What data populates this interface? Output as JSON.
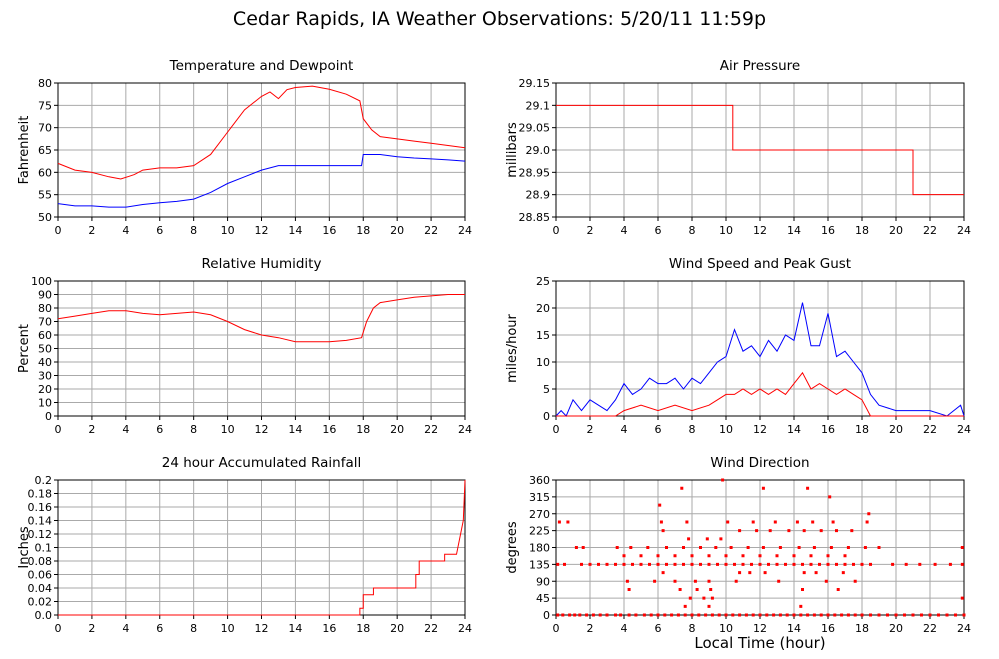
{
  "title": "Cedar Rapids, IA Weather Observations: 5/20/11 11:59p",
  "xlabel": "Local Time (hour)",
  "colors": {
    "red": "#ff0000",
    "blue": "#0000ff",
    "grid": "#aaaaaa"
  },
  "chart_data": [
    {
      "id": "temperature",
      "type": "line",
      "title": "Temperature and Dewpoint",
      "ylabel": "Fahrenheit",
      "xlim": [
        0,
        24
      ],
      "ylim": [
        50,
        80
      ],
      "xticks": [
        0,
        2,
        4,
        6,
        8,
        10,
        12,
        14,
        16,
        18,
        20,
        22,
        24
      ],
      "yticks": [
        50,
        55,
        60,
        65,
        70,
        75,
        80
      ],
      "ytick_labels": [
        "50",
        "55",
        "60",
        "65",
        "70",
        "75",
        "80"
      ],
      "grid": true,
      "series": [
        {
          "color": "#ff0000",
          "x": [
            0,
            1,
            2,
            3,
            3.7,
            4.5,
            5,
            6,
            7,
            8,
            9,
            10,
            11,
            12,
            12.5,
            13,
            13.5,
            14,
            15,
            16,
            17,
            17.8,
            18,
            18.5,
            19,
            20,
            21,
            22,
            23,
            24
          ],
          "y": [
            62,
            60.5,
            60,
            59,
            58.5,
            59.5,
            60.5,
            61,
            61,
            61.5,
            64,
            69,
            74,
            77,
            78,
            76.5,
            78.5,
            79,
            79.3,
            78.6,
            77.5,
            76,
            72,
            69.5,
            68,
            67.5,
            67,
            66.5,
            66,
            65.5
          ]
        },
        {
          "color": "#0000ff",
          "x": [
            0,
            1,
            2,
            3,
            4,
            5,
            6,
            7,
            8,
            9,
            10,
            11,
            12,
            13,
            14,
            15,
            16,
            17,
            17.9,
            18,
            19,
            20,
            21,
            22,
            23,
            24
          ],
          "y": [
            53,
            52.5,
            52.5,
            52.2,
            52.2,
            52.8,
            53.2,
            53.5,
            54,
            55.5,
            57.5,
            59,
            60.5,
            61.5,
            61.5,
            61.5,
            61.5,
            61.5,
            61.5,
            64,
            64,
            63.5,
            63.2,
            63,
            62.8,
            62.5
          ]
        }
      ]
    },
    {
      "id": "pressure",
      "type": "line",
      "title": "Air Pressure",
      "ylabel": "millibars",
      "xlim": [
        0,
        24
      ],
      "ylim": [
        28.85,
        29.15
      ],
      "xticks": [
        0,
        2,
        4,
        6,
        8,
        10,
        12,
        14,
        16,
        18,
        20,
        22,
        24
      ],
      "yticks": [
        28.85,
        28.9,
        28.95,
        29.0,
        29.05,
        29.1,
        29.15
      ],
      "ytick_labels": [
        "28.85",
        "28.9",
        "28.95",
        "29.0",
        "29.05",
        "29.1",
        "29.15"
      ],
      "grid": true,
      "series": [
        {
          "color": "#ff0000",
          "step": true,
          "x": [
            0,
            10.4,
            10.4,
            21,
            21,
            24
          ],
          "y": [
            29.1,
            29.1,
            29.0,
            29.0,
            28.9,
            28.9
          ]
        }
      ]
    },
    {
      "id": "humidity",
      "type": "line",
      "title": "Relative Humidity",
      "ylabel": "Percent",
      "xlim": [
        0,
        24
      ],
      "ylim": [
        0,
        100
      ],
      "xticks": [
        0,
        2,
        4,
        6,
        8,
        10,
        12,
        14,
        16,
        18,
        20,
        22,
        24
      ],
      "yticks": [
        0,
        10,
        20,
        30,
        40,
        50,
        60,
        70,
        80,
        90,
        100
      ],
      "ytick_labels": [
        "0",
        "10",
        "20",
        "30",
        "40",
        "50",
        "60",
        "70",
        "80",
        "90",
        "100"
      ],
      "grid": true,
      "series": [
        {
          "color": "#ff0000",
          "x": [
            0,
            1,
            2,
            3,
            4,
            5,
            6,
            7,
            8,
            9,
            10,
            11,
            12,
            13,
            14,
            15,
            16,
            17,
            17.9,
            18.2,
            18.6,
            19,
            20,
            21,
            22,
            23,
            24
          ],
          "y": [
            72,
            74,
            76,
            78,
            78,
            76,
            75,
            76,
            77,
            75,
            70,
            64,
            60,
            58,
            55,
            55,
            55,
            56,
            58,
            70,
            80,
            84,
            86,
            88,
            89,
            90,
            90
          ]
        }
      ]
    },
    {
      "id": "wind-speed",
      "type": "line",
      "title": "Wind Speed and Peak Gust",
      "ylabel": "miles/hour",
      "xlim": [
        0,
        24
      ],
      "ylim": [
        0,
        25
      ],
      "xticks": [
        0,
        2,
        4,
        6,
        8,
        10,
        12,
        14,
        16,
        18,
        20,
        22,
        24
      ],
      "yticks": [
        0,
        5,
        10,
        15,
        20,
        25
      ],
      "ytick_labels": [
        "0",
        "5",
        "10",
        "15",
        "20",
        "25"
      ],
      "grid": true,
      "series": [
        {
          "color": "#0000ff",
          "x": [
            0,
            0.3,
            0.6,
            1,
            1.5,
            2,
            2.5,
            3,
            3.5,
            4,
            4.5,
            5,
            5.5,
            6,
            6.5,
            7,
            7.5,
            8,
            8.5,
            9,
            9.5,
            10,
            10.5,
            11,
            11.5,
            12,
            12.5,
            13,
            13.5,
            14,
            14.5,
            15,
            15.5,
            16,
            16.5,
            17,
            17.5,
            18,
            18.5,
            19,
            20,
            21,
            22,
            23,
            23.8,
            24
          ],
          "y": [
            0,
            1,
            0,
            3,
            1,
            3,
            2,
            1,
            3,
            6,
            4,
            5,
            7,
            6,
            6,
            7,
            5,
            7,
            6,
            8,
            10,
            11,
            16,
            12,
            13,
            11,
            14,
            12,
            15,
            14,
            21,
            13,
            13,
            19,
            11,
            12,
            10,
            8,
            4,
            2,
            1,
            1,
            1,
            0,
            2,
            0
          ]
        },
        {
          "color": "#ff0000",
          "x": [
            0,
            3.5,
            4,
            5,
            6,
            7,
            8,
            9,
            9.5,
            10,
            10.5,
            11,
            11.5,
            12,
            12.5,
            13,
            13.5,
            14,
            14.5,
            15,
            15.5,
            16,
            16.5,
            17,
            17.5,
            18,
            18.5,
            24
          ],
          "y": [
            0,
            0,
            1,
            2,
            1,
            2,
            1,
            2,
            3,
            4,
            4,
            5,
            4,
            5,
            4,
            5,
            4,
            6,
            8,
            5,
            6,
            5,
            4,
            5,
            4,
            3,
            0,
            0
          ]
        }
      ]
    },
    {
      "id": "rainfall",
      "type": "line",
      "title": "24 hour Accumulated Rainfall",
      "ylabel": "Inches",
      "xlim": [
        0,
        24
      ],
      "ylim": [
        0,
        0.2
      ],
      "xticks": [
        0,
        2,
        4,
        6,
        8,
        10,
        12,
        14,
        16,
        18,
        20,
        22,
        24
      ],
      "yticks": [
        0,
        0.02,
        0.04,
        0.06,
        0.08,
        0.1,
        0.12,
        0.14,
        0.16,
        0.18,
        0.2
      ],
      "ytick_labels": [
        "0.0",
        "0.02",
        "0.04",
        "0.06",
        "0.08",
        "0.1",
        "0.12",
        "0.14",
        "0.16",
        "0.18",
        "0.2"
      ],
      "grid": true,
      "series": [
        {
          "color": "#ff0000",
          "step": true,
          "x": [
            0,
            17.8,
            17.8,
            18.0,
            18.0,
            18.6,
            18.6,
            18.9,
            18.9,
            21.1,
            21.1,
            21.3,
            21.3,
            22.8,
            22.8,
            23.5,
            23.5,
            23.9,
            24
          ],
          "y": [
            0,
            0,
            0.01,
            0.01,
            0.03,
            0.03,
            0.04,
            0.04,
            0.04,
            0.04,
            0.06,
            0.06,
            0.08,
            0.08,
            0.09,
            0.09,
            0.09,
            0.14,
            0.2
          ]
        }
      ]
    },
    {
      "id": "wind-direction",
      "type": "scatter",
      "title": "Wind Direction",
      "ylabel": "degrees",
      "xlim": [
        0,
        24
      ],
      "ylim": [
        0,
        360
      ],
      "xticks": [
        0,
        2,
        4,
        6,
        8,
        10,
        12,
        14,
        16,
        18,
        20,
        22,
        24
      ],
      "yticks": [
        0,
        45,
        90,
        135,
        180,
        225,
        270,
        315,
        360
      ],
      "ytick_labels": [
        "0",
        "45",
        "90",
        "135",
        "180",
        "225",
        "270",
        "315",
        "360"
      ],
      "grid": true,
      "series": [
        {
          "color": "#ff0000",
          "x": [
            0.1,
            0.4,
            0.8,
            1.1,
            1.4,
            1.8,
            2.2,
            2.6,
            3.0,
            3.5,
            3.8,
            4.3,
            4.7,
            5.2,
            5.6,
            6.0,
            6.4,
            6.8,
            7.2,
            7.6,
            8.0,
            8.4,
            8.8,
            9.2,
            9.6,
            10.0,
            10.4,
            10.8,
            11.2,
            11.6,
            12.0,
            12.4,
            12.8,
            13.2,
            13.6,
            14.0,
            14.4,
            14.8,
            15.2,
            15.6,
            16.0,
            16.4,
            16.8,
            17.2,
            17.6,
            18.0,
            18.5,
            19.0,
            19.5,
            20.0,
            20.5,
            21.0,
            21.5,
            22.0,
            22.5,
            23.0,
            23.5,
            24.0,
            0.1,
            0.5,
            1.5,
            2.0,
            2.5,
            3.0,
            3.5,
            4.0,
            4.5,
            5.0,
            5.5,
            6.0,
            6.5,
            7.0,
            7.5,
            8.0,
            8.5,
            9.0,
            9.5,
            10.0,
            10.5,
            11.0,
            11.5,
            12.0,
            12.5,
            13.0,
            13.5,
            14.0,
            14.5,
            15.0,
            15.5,
            16.0,
            16.5,
            17.0,
            17.5,
            18.0,
            18.5,
            19.8,
            20.6,
            21.4,
            22.3,
            23.2,
            23.9,
            4.0,
            5.0,
            6.0,
            7.0,
            8.0,
            9.0,
            10.0,
            11.0,
            12.0,
            13.0,
            14.0,
            15.0,
            16.0,
            17.0,
            1.2,
            1.6,
            3.6,
            4.4,
            5.4,
            6.5,
            7.5,
            8.5,
            9.4,
            10.3,
            11.3,
            12.2,
            13.2,
            14.3,
            15.2,
            16.2,
            17.2,
            18.2,
            19.0,
            23.9,
            0.2,
            0.7,
            6.3,
            7.8,
            8.9,
            9.7,
            10.8,
            11.8,
            12.6,
            13.7,
            14.6,
            15.6,
            16.5,
            17.4,
            18.3,
            6.2,
            7.7,
            10.1,
            11.6,
            12.9,
            14.2,
            15.1,
            16.3,
            18.4,
            6.1,
            7.4,
            9.8,
            12.2,
            14.8,
            16.1,
            4.2,
            5.8,
            7.0,
            8.2,
            9.0,
            10.6,
            13.1,
            15.9,
            17.6,
            23.9,
            4.3,
            7.3,
            8.3,
            9.1,
            14.5,
            16.6,
            7.9,
            8.7,
            14.4,
            7.6,
            9.0,
            9.2,
            12.3,
            14.6,
            15.3,
            6.3,
            16.9,
            11.4,
            10.8
          ],
          "y": [
            0,
            0,
            0,
            0,
            0,
            0,
            0,
            0,
            0,
            0,
            0,
            0,
            0,
            0,
            0,
            0,
            0,
            0,
            0,
            0,
            0,
            0,
            0,
            0,
            0,
            0,
            0,
            0,
            0,
            0,
            0,
            0,
            0,
            0,
            0,
            0,
            0,
            0,
            0,
            0,
            0,
            0,
            0,
            0,
            0,
            0,
            0,
            0,
            0,
            0,
            0,
            0,
            0,
            0,
            0,
            0,
            0,
            0,
            135,
            135,
            135,
            135,
            135,
            135,
            135,
            135,
            135,
            135,
            135,
            135,
            135,
            135,
            135,
            135,
            135,
            135,
            135,
            135,
            135,
            135,
            135,
            135,
            135,
            135,
            135,
            135,
            135,
            135,
            135,
            135,
            135,
            135,
            135,
            135,
            135,
            135,
            135,
            135,
            135,
            135,
            135,
            158,
            158,
            158,
            158,
            158,
            158,
            158,
            158,
            158,
            158,
            158,
            158,
            158,
            158,
            180,
            180,
            180,
            180,
            180,
            180,
            180,
            180,
            180,
            180,
            180,
            180,
            180,
            180,
            180,
            180,
            180,
            180,
            180,
            180,
            248,
            248,
            225,
            203,
            203,
            203,
            225,
            225,
            225,
            225,
            225,
            225,
            225,
            225,
            248,
            248,
            248,
            248,
            248,
            248,
            248,
            248,
            248,
            270,
            293,
            338,
            360,
            338,
            338,
            315,
            90,
            90,
            90,
            90,
            90,
            90,
            90,
            90,
            90,
            45,
            68,
            68,
            68,
            68,
            68,
            68,
            45,
            45,
            23,
            23,
            23,
            45,
            113,
            113,
            113,
            113,
            113,
            113,
            113
          ]
        }
      ]
    }
  ]
}
